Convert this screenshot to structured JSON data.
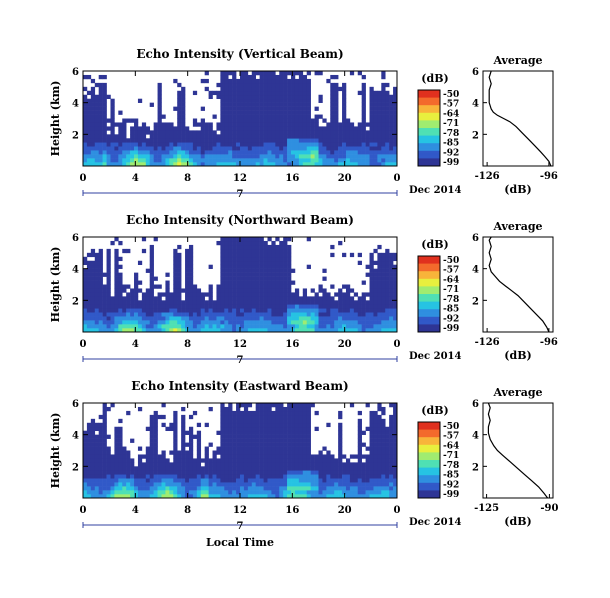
{
  "chart_data": {
    "type": "heatmap",
    "panels": [
      {
        "title": "Echo Intensity (Vertical Beam)",
        "ylabel": "Height (km)",
        "yticks": [
          "6",
          "4",
          "2"
        ],
        "ylim": [
          0,
          6
        ],
        "xticks": [
          "0",
          "4",
          "8",
          "12",
          "16",
          "20",
          "0"
        ],
        "xlim": [
          0,
          24
        ],
        "date_day": "7",
        "date_label": "Dec 2014",
        "colorbar_unit": "(dB)",
        "colorbar_ticks": [
          "-50",
          "-57",
          "-64",
          "-71",
          "-78",
          "-85",
          "-92",
          "-99"
        ],
        "profile_title": "Average",
        "profile_xlabel": "(dB)",
        "profile_xticks": [
          "-126",
          "-96"
        ],
        "profile_yticks": [
          "6",
          "4",
          "2"
        ],
        "profile": [
          [
            -95,
            0.0
          ],
          [
            -96,
            0.3
          ],
          [
            -98,
            0.6
          ],
          [
            -100,
            0.9
          ],
          [
            -103,
            1.3
          ],
          [
            -106,
            1.7
          ],
          [
            -109,
            2.1
          ],
          [
            -112,
            2.5
          ],
          [
            -115,
            2.8
          ],
          [
            -118,
            3.0
          ],
          [
            -121,
            3.2
          ],
          [
            -123,
            3.4
          ],
          [
            -124,
            3.6
          ],
          [
            -125,
            4.0
          ],
          [
            -125,
            4.4
          ],
          [
            -125,
            4.8
          ],
          [
            -124,
            5.2
          ],
          [
            -125,
            5.6
          ],
          [
            -124,
            6.0
          ]
        ]
      },
      {
        "title": "Echo Intensity (Northward Beam)",
        "ylabel": "Height (km)",
        "yticks": [
          "6",
          "4",
          "2"
        ],
        "ylim": [
          0,
          6
        ],
        "xticks": [
          "0",
          "4",
          "8",
          "12",
          "16",
          "20",
          "0"
        ],
        "xlim": [
          0,
          24
        ],
        "date_day": "7",
        "date_label": "Dec 2014",
        "colorbar_unit": "(dB)",
        "colorbar_ticks": [
          "-50",
          "-57",
          "-64",
          "-71",
          "-78",
          "-85",
          "-92",
          "-99"
        ],
        "profile_title": "Average",
        "profile_xlabel": "(dB)",
        "profile_xticks": [
          "-126",
          "-96"
        ],
        "profile_yticks": [
          "6",
          "4",
          "2"
        ],
        "profile": [
          [
            -96,
            0.0
          ],
          [
            -97,
            0.3
          ],
          [
            -99,
            0.7
          ],
          [
            -102,
            1.1
          ],
          [
            -105,
            1.5
          ],
          [
            -108,
            1.9
          ],
          [
            -111,
            2.3
          ],
          [
            -114,
            2.6
          ],
          [
            -117,
            2.9
          ],
          [
            -120,
            3.2
          ],
          [
            -122,
            3.5
          ],
          [
            -124,
            3.8
          ],
          [
            -125,
            4.2
          ],
          [
            -124,
            4.6
          ],
          [
            -125,
            5.0
          ],
          [
            -124,
            5.4
          ],
          [
            -125,
            5.8
          ],
          [
            -124,
            6.0
          ]
        ]
      },
      {
        "title": "Echo Intensity (Eastward Beam)",
        "ylabel": "Height (km)",
        "yticks": [
          "6",
          "4",
          "2"
        ],
        "ylim": [
          0,
          6
        ],
        "xticks": [
          "0",
          "4",
          "8",
          "12",
          "16",
          "20",
          "0"
        ],
        "xlim": [
          0,
          24
        ],
        "date_day": "7",
        "date_label": "Dec 2014",
        "colorbar_unit": "(dB)",
        "colorbar_ticks": [
          "-50",
          "-57",
          "-64",
          "-71",
          "-78",
          "-85",
          "-92",
          "-99"
        ],
        "xlabel": "Local Time",
        "profile_title": "Average",
        "profile_xlabel": "(dB)",
        "profile_xticks": [
          "-125",
          "-90"
        ],
        "profile_yticks": [
          "6",
          "4",
          "2"
        ],
        "profile": [
          [
            -91,
            0.0
          ],
          [
            -93,
            0.3
          ],
          [
            -96,
            0.7
          ],
          [
            -100,
            1.1
          ],
          [
            -104,
            1.5
          ],
          [
            -108,
            1.9
          ],
          [
            -112,
            2.3
          ],
          [
            -116,
            2.7
          ],
          [
            -119,
            3.0
          ],
          [
            -121,
            3.3
          ],
          [
            -123,
            3.7
          ],
          [
            -124,
            4.1
          ],
          [
            -124,
            4.5
          ],
          [
            -123,
            4.9
          ],
          [
            -124,
            5.3
          ],
          [
            -123,
            5.7
          ],
          [
            -124,
            6.0
          ]
        ]
      }
    ],
    "colors": {
      "background_echo": "#2e3595",
      "missing": "#ffffff",
      "scale": [
        "#2e3595",
        "#3159c8",
        "#2f8fe0",
        "#26c3e3",
        "#4fe0b4",
        "#a0ec70",
        "#e8ef3e",
        "#f8b43a",
        "#f36a2c",
        "#e0301e"
      ]
    }
  }
}
